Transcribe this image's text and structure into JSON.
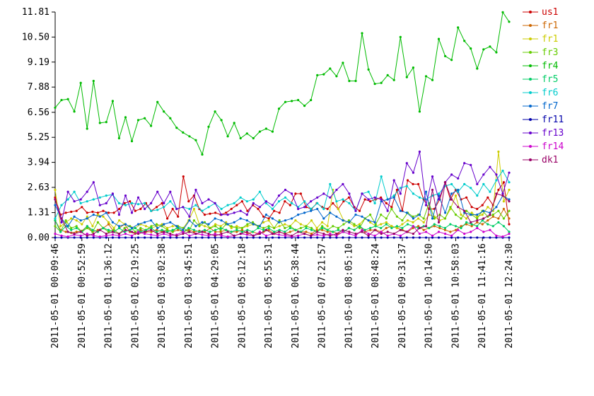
{
  "chart_data": {
    "type": "line",
    "grid": false,
    "legend_position": "right",
    "y_ticks": [
      "0.00",
      "1.31",
      "2.63",
      "3.94",
      "5.25",
      "6.56",
      "7.88",
      "9.19",
      "10.50",
      "11.81"
    ],
    "ylim": [
      0,
      11.81
    ],
    "x_ticks": [
      "2011-05-01 00:09:46",
      "2011-05-01 00:52:59",
      "2011-05-01 01:36:12",
      "2011-05-01 02:19:25",
      "2011-05-01 03:02:38",
      "2011-05-01 03:45:51",
      "2011-05-01 04:29:05",
      "2011-05-01 05:12:18",
      "2011-05-01 05:55:31",
      "2011-05-01 06:38:44",
      "2011-05-01 07:21:57",
      "2011-05-01 08:05:10",
      "2011-05-01 08:48:24",
      "2011-05-01 09:31:37",
      "2011-05-01 10:14:50",
      "2011-05-01 10:58:03",
      "2011-05-01 11:41:16",
      "2011-05-01 12:24:30"
    ],
    "series": [
      {
        "name": "us1",
        "color": "#cc0000",
        "values": [
          2.1,
          1.2,
          1.3,
          1.35,
          1.4,
          1.6,
          1.3,
          1.35,
          1.3,
          1.4,
          1.3,
          1.3,
          1.5,
          1.8,
          1.9,
          1.4,
          1.5,
          1.8,
          1.4,
          1.6,
          1.8,
          1.0,
          1.5,
          1.1,
          3.2,
          1.9,
          2.2,
          1.5,
          1.2,
          1.25,
          1.3,
          1.2,
          1.3,
          1.5,
          1.7,
          1.9,
          1.4,
          1.7,
          1.5,
          1.1,
          1.0,
          1.4,
          1.3,
          1.9,
          1.7,
          2.3,
          2.3,
          1.6,
          1.5,
          1.8,
          1.6,
          1.5,
          1.8,
          1.5,
          1.9,
          2.1,
          1.6,
          1.4,
          2.0,
          1.9,
          2.0,
          2.1,
          1.8,
          1.6,
          2.5,
          1.4,
          3.0,
          2.8,
          2.8,
          2.0,
          1.5,
          1.5,
          2.0,
          2.9,
          2.0,
          2.5,
          2.0,
          2.1,
          1.6,
          1.5,
          1.7,
          2.1,
          1.7,
          2.5,
          2.9,
          0.7
        ]
      },
      {
        "name": "fr1",
        "color": "#cc6600",
        "values": [
          0.9,
          0.4,
          0.3,
          0.25,
          0.3,
          0.35,
          0.6,
          0.3,
          0.4,
          0.5,
          0.7,
          0.3,
          0.5,
          0.7,
          0.3,
          0.2,
          0.4,
          0.3,
          0.3,
          0.4,
          0.3,
          0.4,
          0.3,
          0.4,
          0.3,
          0.4,
          0.3,
          0.35,
          0.3,
          0.5,
          0.3,
          0.3,
          0.4,
          0.3,
          0.3,
          0.4,
          0.2,
          0.3,
          0.2,
          0.3,
          0.4,
          0.2,
          0.3,
          0.2,
          0.3,
          0.4,
          0.3,
          0.3,
          0.2,
          0.4,
          0.4,
          0.3,
          0.3,
          0.2,
          0.3,
          0.5,
          0.4,
          0.6,
          0.3,
          0.4,
          0.4,
          0.3,
          0.5,
          0.6,
          0.5,
          0.4,
          0.3,
          0.5,
          0.6,
          0.4,
          0.5,
          0.6,
          0.5,
          0.4,
          0.3,
          0.4,
          0.6,
          0.7,
          0.6,
          0.8,
          0.7,
          0.9,
          1.1,
          1.0,
          1.5,
          1.0
        ]
      },
      {
        "name": "fr1",
        "color": "#cccc00",
        "values": [
          2.5,
          0.6,
          0.8,
          1.0,
          0.9,
          0.7,
          1.1,
          0.6,
          1.2,
          1.1,
          0.8,
          0.5,
          0.9,
          0.7,
          0.6,
          0.5,
          0.7,
          0.6,
          0.5,
          0.6,
          0.7,
          0.5,
          0.6,
          0.6,
          0.5,
          0.9,
          1.5,
          0.7,
          0.6,
          0.5,
          0.7,
          0.6,
          0.8,
          0.5,
          0.6,
          0.5,
          0.6,
          0.7,
          0.6,
          0.8,
          0.9,
          0.5,
          0.6,
          0.7,
          0.6,
          0.9,
          0.7,
          0.6,
          0.9,
          0.5,
          0.8,
          0.6,
          2.5,
          1.5,
          0.9,
          0.8,
          0.6,
          0.7,
          1.0,
          0.8,
          0.6,
          0.7,
          0.8,
          0.6,
          0.5,
          0.7,
          0.9,
          0.8,
          1.0,
          0.8,
          1.2,
          1.1,
          0.9,
          1.0,
          1.5,
          2.2,
          1.2,
          1.0,
          1.3,
          1.1,
          1.2,
          1.6,
          1.4,
          4.5,
          1.9,
          2.5
        ]
      },
      {
        "name": "fr3",
        "color": "#66cc00",
        "values": [
          0.6,
          0.3,
          0.9,
          0.5,
          0.6,
          0.3,
          0.5,
          0.3,
          0.8,
          0.5,
          0.3,
          0.4,
          0.2,
          0.5,
          0.6,
          0.3,
          0.5,
          0.4,
          0.6,
          0.7,
          0.6,
          0.4,
          0.3,
          0.6,
          0.5,
          0.3,
          0.9,
          0.6,
          0.8,
          0.5,
          0.6,
          0.4,
          0.7,
          0.6,
          0.5,
          0.5,
          0.7,
          0.8,
          0.6,
          0.5,
          0.6,
          0.5,
          0.9,
          0.5,
          0.6,
          0.4,
          0.5,
          0.6,
          0.5,
          0.3,
          0.6,
          0.4,
          0.6,
          0.5,
          0.7,
          0.9,
          0.7,
          0.5,
          1.0,
          1.2,
          0.7,
          1.2,
          1.0,
          1.5,
          1.1,
          0.9,
          1.3,
          1.1,
          1.2,
          1.0,
          1.8,
          1.0,
          1.2,
          1.0,
          1.6,
          1.2,
          1.0,
          1.4,
          1.2,
          1.0,
          1.4,
          1.1,
          1.2,
          1.4,
          1.0,
          1.4
        ]
      },
      {
        "name": "fr4",
        "color": "#00bb00",
        "values": [
          6.8,
          7.2,
          7.25,
          6.6,
          8.1,
          5.7,
          8.2,
          6.0,
          6.05,
          7.15,
          5.2,
          6.3,
          5.05,
          6.15,
          6.25,
          5.85,
          7.1,
          6.6,
          6.25,
          5.75,
          5.5,
          5.3,
          5.1,
          4.35,
          5.8,
          6.6,
          6.15,
          5.3,
          6.0,
          5.2,
          5.45,
          5.2,
          5.55,
          5.7,
          5.55,
          6.75,
          7.1,
          7.15,
          7.2,
          6.9,
          7.2,
          8.5,
          8.55,
          8.85,
          8.45,
          9.15,
          8.2,
          8.2,
          10.7,
          8.8,
          8.05,
          8.1,
          8.5,
          8.25,
          10.5,
          8.4,
          8.9,
          6.6,
          8.45,
          8.25,
          10.4,
          9.5,
          9.3,
          11.0,
          10.3,
          9.9,
          8.85,
          9.85,
          10.0,
          9.7,
          11.8,
          11.3
        ]
      },
      {
        "name": "fr5",
        "color": "#00cc66",
        "values": [
          0.9,
          0.3,
          0.6,
          0.4,
          0.5,
          0.3,
          0.6,
          0.4,
          0.3,
          0.5,
          0.4,
          0.3,
          0.5,
          0.3,
          0.4,
          0.5,
          0.3,
          0.4,
          0.5,
          0.3,
          0.4,
          0.3,
          0.4,
          0.5,
          0.3,
          0.5,
          0.4,
          0.3,
          0.4,
          0.3,
          0.4,
          0.5,
          0.4,
          0.3,
          0.4,
          0.3,
          0.4,
          0.3,
          0.5,
          0.4,
          0.5,
          0.3,
          0.4,
          0.3,
          0.5,
          0.4,
          0.3,
          0.5,
          0.4,
          0.3,
          0.5,
          0.4,
          0.3,
          0.4,
          0.3,
          0.5,
          0.4,
          0.6,
          0.4,
          0.5,
          0.6,
          0.5,
          0.7,
          0.5,
          0.6,
          0.5,
          0.7,
          0.6,
          0.5,
          0.6,
          0.5,
          0.7,
          0.6,
          0.5,
          0.7,
          0.6,
          0.5,
          0.8,
          0.7,
          0.6,
          0.9,
          0.7,
          0.6,
          0.8,
          0.6,
          0.3
        ]
      },
      {
        "name": "fr6",
        "color": "#00cccc",
        "values": [
          1.0,
          1.7,
          2.0,
          2.4,
          1.8,
          1.9,
          2.0,
          2.1,
          2.2,
          2.25,
          1.8,
          1.7,
          1.8,
          1.75,
          1.8,
          1.4,
          1.45,
          1.6,
          1.9,
          1.5,
          1.6,
          1.5,
          1.7,
          1.4,
          1.6,
          1.8,
          1.5,
          1.7,
          1.8,
          2.1,
          1.9,
          2.0,
          2.4,
          1.8,
          1.5,
          1.9,
          2.1,
          1.8,
          1.6,
          1.9,
          1.5,
          1.8,
          1.5,
          2.8,
          1.9,
          2.0,
          1.8,
          1.4,
          2.3,
          2.4,
          1.8,
          3.2,
          2.0,
          2.2,
          2.6,
          2.7,
          2.3,
          2.1,
          2.0,
          2.2,
          2.3,
          2.7,
          2.8,
          2.4,
          2.8,
          2.6,
          2.2,
          2.8,
          2.4,
          3.0,
          3.5,
          2.9
        ]
      },
      {
        "name": "fr7",
        "color": "#0066cc",
        "values": [
          1.7,
          1.0,
          0.6,
          1.1,
          0.9,
          1.0,
          1.2,
          1.1,
          1.3,
          0.8,
          0.6,
          0.7,
          0.5,
          0.7,
          0.8,
          0.9,
          0.5,
          0.7,
          0.8,
          0.6,
          0.4,
          0.9,
          0.6,
          0.8,
          0.7,
          1.0,
          0.9,
          0.7,
          0.8,
          1.0,
          0.9,
          0.7,
          0.6,
          1.2,
          1.0,
          0.8,
          0.9,
          1.0,
          1.2,
          1.3,
          1.4,
          1.5,
          1.0,
          1.3,
          1.1,
          0.9,
          0.8,
          1.2,
          1.1,
          0.9,
          0.8,
          1.9,
          2.0,
          2.1,
          1.4,
          1.3,
          1.0,
          1.2,
          2.4,
          1.0,
          2.2,
          1.3,
          2.3,
          2.5,
          1.3,
          1.2,
          1.2,
          1.4,
          1.3,
          1.6,
          2.2,
          2.0
        ]
      },
      {
        "name": "fr11",
        "color": "#0000aa",
        "values": [
          0.0,
          0.0,
          0.0,
          0.0,
          0.0,
          0.0,
          0.0,
          0.0,
          0.0,
          0.0,
          0.0,
          0.0,
          0.0,
          0.0,
          0.0,
          0.0,
          0.0,
          0.0,
          0.0,
          0.0,
          0.0,
          0.0,
          0.0,
          0.0,
          0.0,
          0.0,
          0.0,
          0.0,
          0.0,
          0.0,
          0.0,
          0.0,
          0.0,
          0.0,
          0.0,
          0.0,
          0.0,
          0.0,
          0.0,
          0.0,
          0.0,
          0.0,
          0.0,
          0.0,
          0.0,
          0.0,
          0.0,
          0.0,
          0.0,
          0.0,
          0.0,
          0.0,
          0.0,
          0.0,
          0.0,
          0.0,
          0.0,
          0.0,
          0.0,
          0.0,
          0.0,
          0.0,
          0.0,
          0.0,
          0.0,
          0.0,
          0.0,
          0.0,
          0.0,
          0.0,
          0.0,
          0.0
        ]
      },
      {
        "name": "fr13",
        "color": "#6600cc",
        "values": [
          2.0,
          0.8,
          2.4,
          1.9,
          2.0,
          2.4,
          2.9,
          1.7,
          1.8,
          2.3,
          1.2,
          2.2,
          1.3,
          2.1,
          1.5,
          1.8,
          2.4,
          1.8,
          2.4,
          1.5,
          1.6,
          1.1,
          2.5,
          1.8,
          2.0,
          1.8,
          1.2,
          1.2,
          1.3,
          1.4,
          1.2,
          1.8,
          1.6,
          1.9,
          1.7,
          2.2,
          2.5,
          2.3,
          1.5,
          1.6,
          1.9,
          2.1,
          2.3,
          2.1,
          2.5,
          2.8,
          2.3,
          1.4,
          2.3,
          2.0,
          2.1,
          2.0,
          1.4,
          3.0,
          2.3,
          3.9,
          3.4,
          4.5,
          1.7,
          3.2,
          2.0,
          2.9,
          3.3,
          3.1,
          3.9,
          3.8,
          2.8,
          3.3,
          3.7,
          3.3,
          2.3,
          3.4
        ]
      },
      {
        "name": "fr14",
        "color": "#cc00cc",
        "values": [
          0.2,
          0.1,
          0.05,
          0.15,
          0.1,
          0.2,
          0.1,
          0.05,
          0.1,
          0.15,
          0.1,
          0.2,
          0.1,
          0.3,
          0.2,
          0.15,
          0.1,
          0.2,
          0.1,
          0.15,
          0.3,
          0.1,
          0.2,
          0.15,
          0.1,
          0.2,
          0.1,
          0.05,
          0.1,
          0.2,
          0.15,
          0.1,
          0.3,
          0.1,
          0.2,
          0.15,
          0.1,
          0.05,
          0.1,
          0.2,
          0.1,
          0.15,
          0.1,
          0.2,
          0.1,
          0.3,
          0.2,
          0.1,
          0.4,
          0.2,
          0.1,
          0.3,
          0.1,
          0.2,
          0.1,
          0.3,
          0.6,
          0.2,
          0.3,
          0.1,
          0.3,
          0.2,
          0.1,
          0.4,
          0.2,
          0.3,
          0.5,
          0.3,
          0.4,
          0.1,
          0.05,
          0.2
        ]
      },
      {
        "name": "dk1",
        "color": "#990066",
        "values": [
          2.0,
          1.0,
          0.3,
          0.2,
          0.3,
          0.1,
          0.2,
          0.4,
          0.2,
          0.3,
          0.2,
          0.4,
          0.3,
          0.2,
          0.3,
          0.4,
          0.2,
          0.3,
          0.2,
          0.1,
          0.2,
          0.3,
          0.2,
          0.3,
          0.2,
          0.1,
          0.2,
          0.3,
          0.1,
          0.2,
          0.3,
          0.1,
          0.2,
          0.4,
          0.2,
          0.3,
          0.2,
          0.1,
          0.3,
          0.2,
          0.1,
          0.3,
          0.2,
          0.1,
          0.2,
          0.4,
          0.3,
          0.2,
          0.3,
          0.1,
          0.4,
          0.2,
          0.3,
          0.2,
          0.4,
          0.3,
          0.2,
          0.5,
          0.6,
          2.5,
          0.8,
          2.9,
          2.0,
          1.6,
          1.4,
          0.8,
          0.9,
          1.0,
          1.2,
          2.3,
          2.2,
          1.9
        ]
      }
    ]
  }
}
